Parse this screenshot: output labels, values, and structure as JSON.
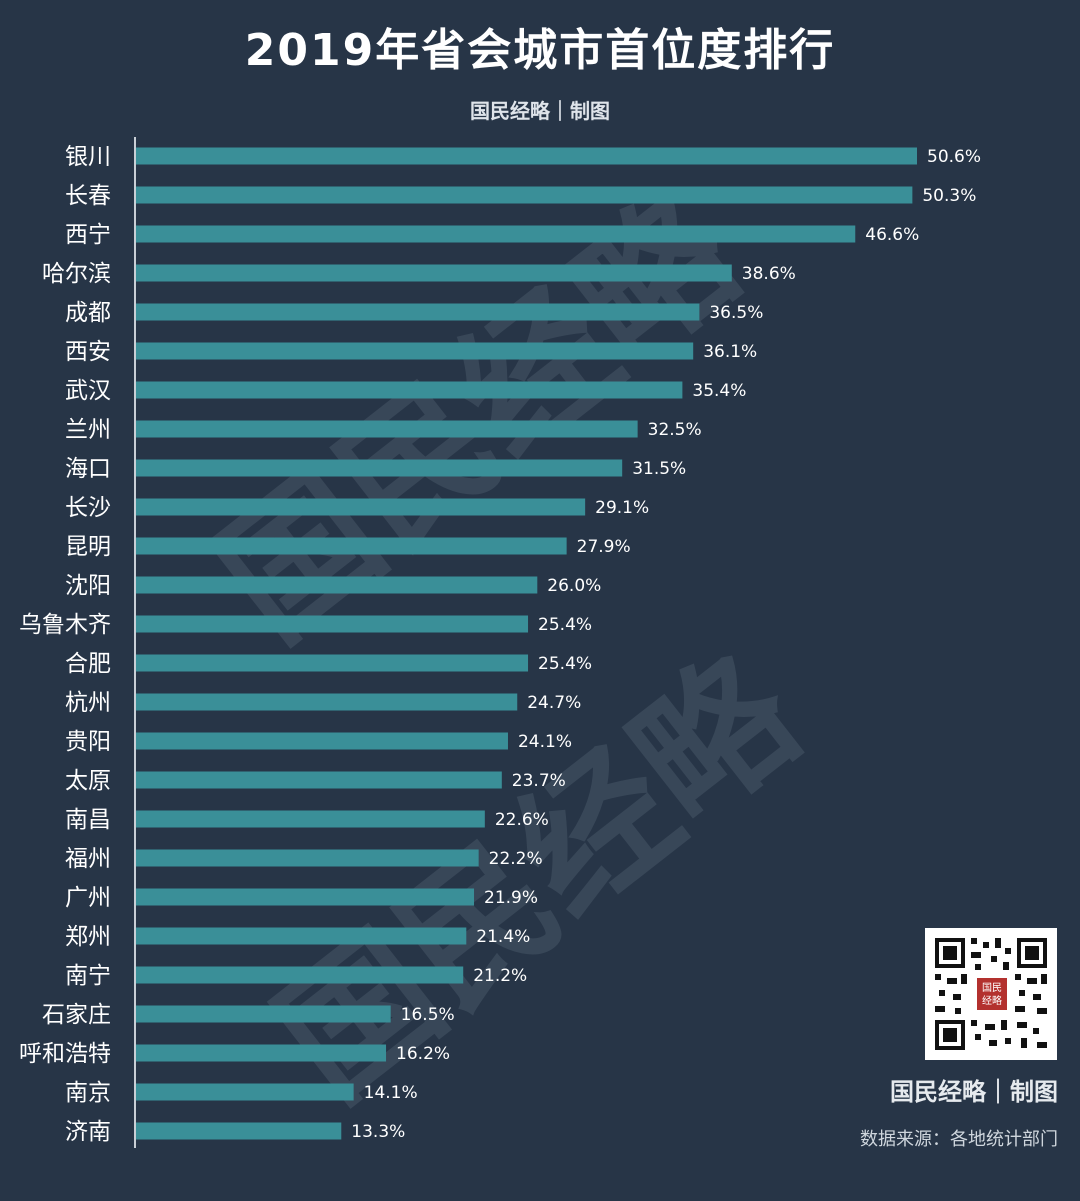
{
  "title": "2019年省会城市首位度排行",
  "brand_top": "国民经略｜制图",
  "brand_bottom": "国民经略｜制图",
  "watermark_text": "国民经略",
  "source": "数据来源：各地统计部门",
  "qr_badge": "国民经略",
  "colors": {
    "background": "#273547",
    "bar": "#3a8f98",
    "axis": "#c9cfd6",
    "label": "#ffffff"
  },
  "chart_data": {
    "type": "bar",
    "orientation": "horizontal",
    "title": "2019年省会城市首位度排行",
    "categories": [
      "银川",
      "长春",
      "西宁",
      "哈尔滨",
      "成都",
      "西安",
      "武汉",
      "兰州",
      "海口",
      "长沙",
      "昆明",
      "沈阳",
      "乌鲁木齐",
      "合肥",
      "杭州",
      "贵阳",
      "太原",
      "南昌",
      "福州",
      "广州",
      "郑州",
      "南宁",
      "石家庄",
      "呼和浩特",
      "南京",
      "济南"
    ],
    "values": [
      50.6,
      50.3,
      46.6,
      38.6,
      36.5,
      36.1,
      35.4,
      32.5,
      31.5,
      29.1,
      27.9,
      26.0,
      25.4,
      25.4,
      24.7,
      24.1,
      23.7,
      22.6,
      22.2,
      21.9,
      21.4,
      21.2,
      16.5,
      16.2,
      14.1,
      13.3
    ],
    "value_labels": [
      "50.6%",
      "50.3%",
      "46.6%",
      "38.6%",
      "36.5%",
      "36.1%",
      "35.4%",
      "32.5%",
      "31.5%",
      "29.1%",
      "27.9%",
      "26.0%",
      "25.4%",
      "25.4%",
      "24.7%",
      "24.1%",
      "23.7%",
      "22.6%",
      "22.2%",
      "21.9%",
      "21.4%",
      "21.2%",
      "16.5%",
      "16.2%",
      "14.1%",
      "13.3%"
    ],
    "xlim": [
      0,
      50.6
    ],
    "unit": "%",
    "grid": false,
    "legend": "none"
  }
}
